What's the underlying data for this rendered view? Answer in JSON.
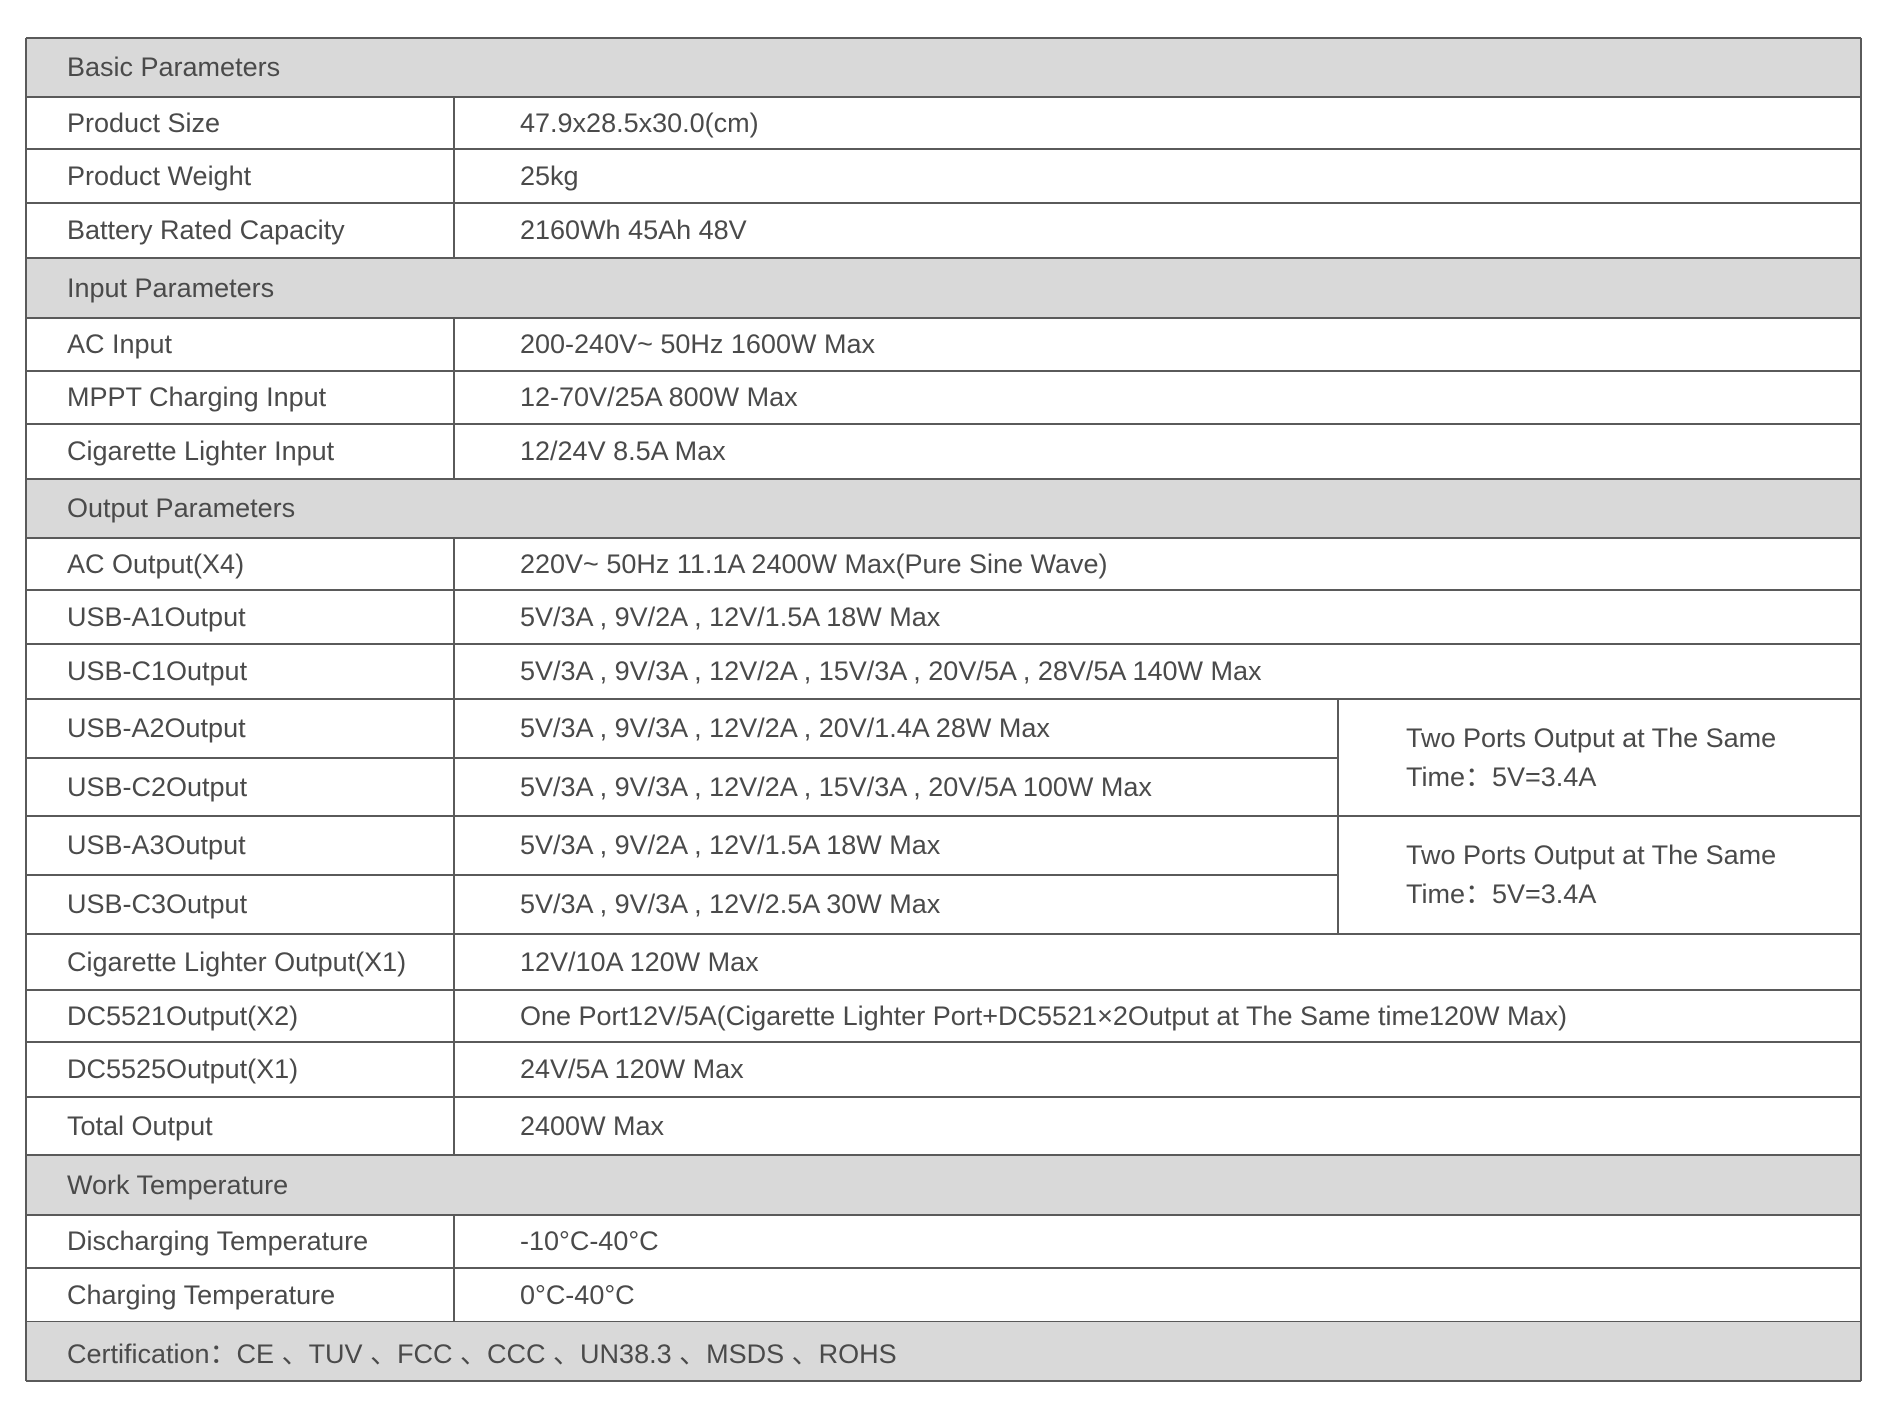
{
  "table": {
    "sections": [
      {
        "title": "Basic Parameters",
        "rows": [
          {
            "label": "Product Size",
            "value": "47.9x28.5x30.0(cm)"
          },
          {
            "label": "Product Weight",
            "value": "25kg"
          },
          {
            "label": "Battery Rated Capacity",
            "value": "2160Wh 45Ah 48V"
          }
        ]
      },
      {
        "title": "Input Parameters",
        "rows": [
          {
            "label": "AC Input",
            "value": "200-240V~ 50Hz 1600W Max"
          },
          {
            "label": "MPPT Charging Input",
            "value": "12-70V/25A 800W Max"
          },
          {
            "label": "Cigarette Lighter Input",
            "value": "12/24V 8.5A Max"
          }
        ]
      },
      {
        "title": "Output Parameters",
        "rows": [
          {
            "label": "AC Output(X4)",
            "value": "220V~ 50Hz 11.1A 2400W Max(Pure Sine Wave)"
          },
          {
            "label": "USB-A1Output",
            "value": "5V/3A , 9V/2A , 12V/1.5A 18W Max"
          },
          {
            "label": "USB-C1Output",
            "value": "5V/3A , 9V/3A , 12V/2A , 15V/3A , 20V/5A , 28V/5A 140W Max"
          },
          {
            "label": "USB-A2Output",
            "value": "5V/3A , 9V/3A , 12V/2A , 20V/1.4A 28W Max",
            "note": "Two Ports Output at The Same Time：5V=3.4A"
          },
          {
            "label": "USB-C2Output",
            "value": "5V/3A , 9V/3A , 12V/2A , 15V/3A , 20V/5A 100W Max"
          },
          {
            "label": "USB-A3Output",
            "value": "5V/3A , 9V/2A , 12V/1.5A 18W Max",
            "note": "Two Ports Output at The Same Time：5V=3.4A"
          },
          {
            "label": "USB-C3Output",
            "value": "5V/3A , 9V/3A , 12V/2.5A 30W Max"
          },
          {
            "label": "Cigarette Lighter Output(X1)",
            "value": "12V/10A 120W Max"
          },
          {
            "label": "DC5521Output(X2)",
            "value": "One Port12V/5A(Cigarette Lighter Port+DC5521×2Output at The Same time120W Max)"
          },
          {
            "label": "DC5525Output(X1)",
            "value": "24V/5A 120W Max"
          },
          {
            "label": "Total Output",
            "value": "2400W Max"
          }
        ]
      },
      {
        "title": "Work Temperature",
        "rows": [
          {
            "label": "Discharging Temperature",
            "value": "-10°C-40°C"
          },
          {
            "label": "Charging Temperature",
            "value": "0°C-40°C"
          }
        ]
      }
    ],
    "footer": "Certification：CE 、TUV 、FCC 、CCC 、UN38.3 、MSDS 、ROHS"
  }
}
